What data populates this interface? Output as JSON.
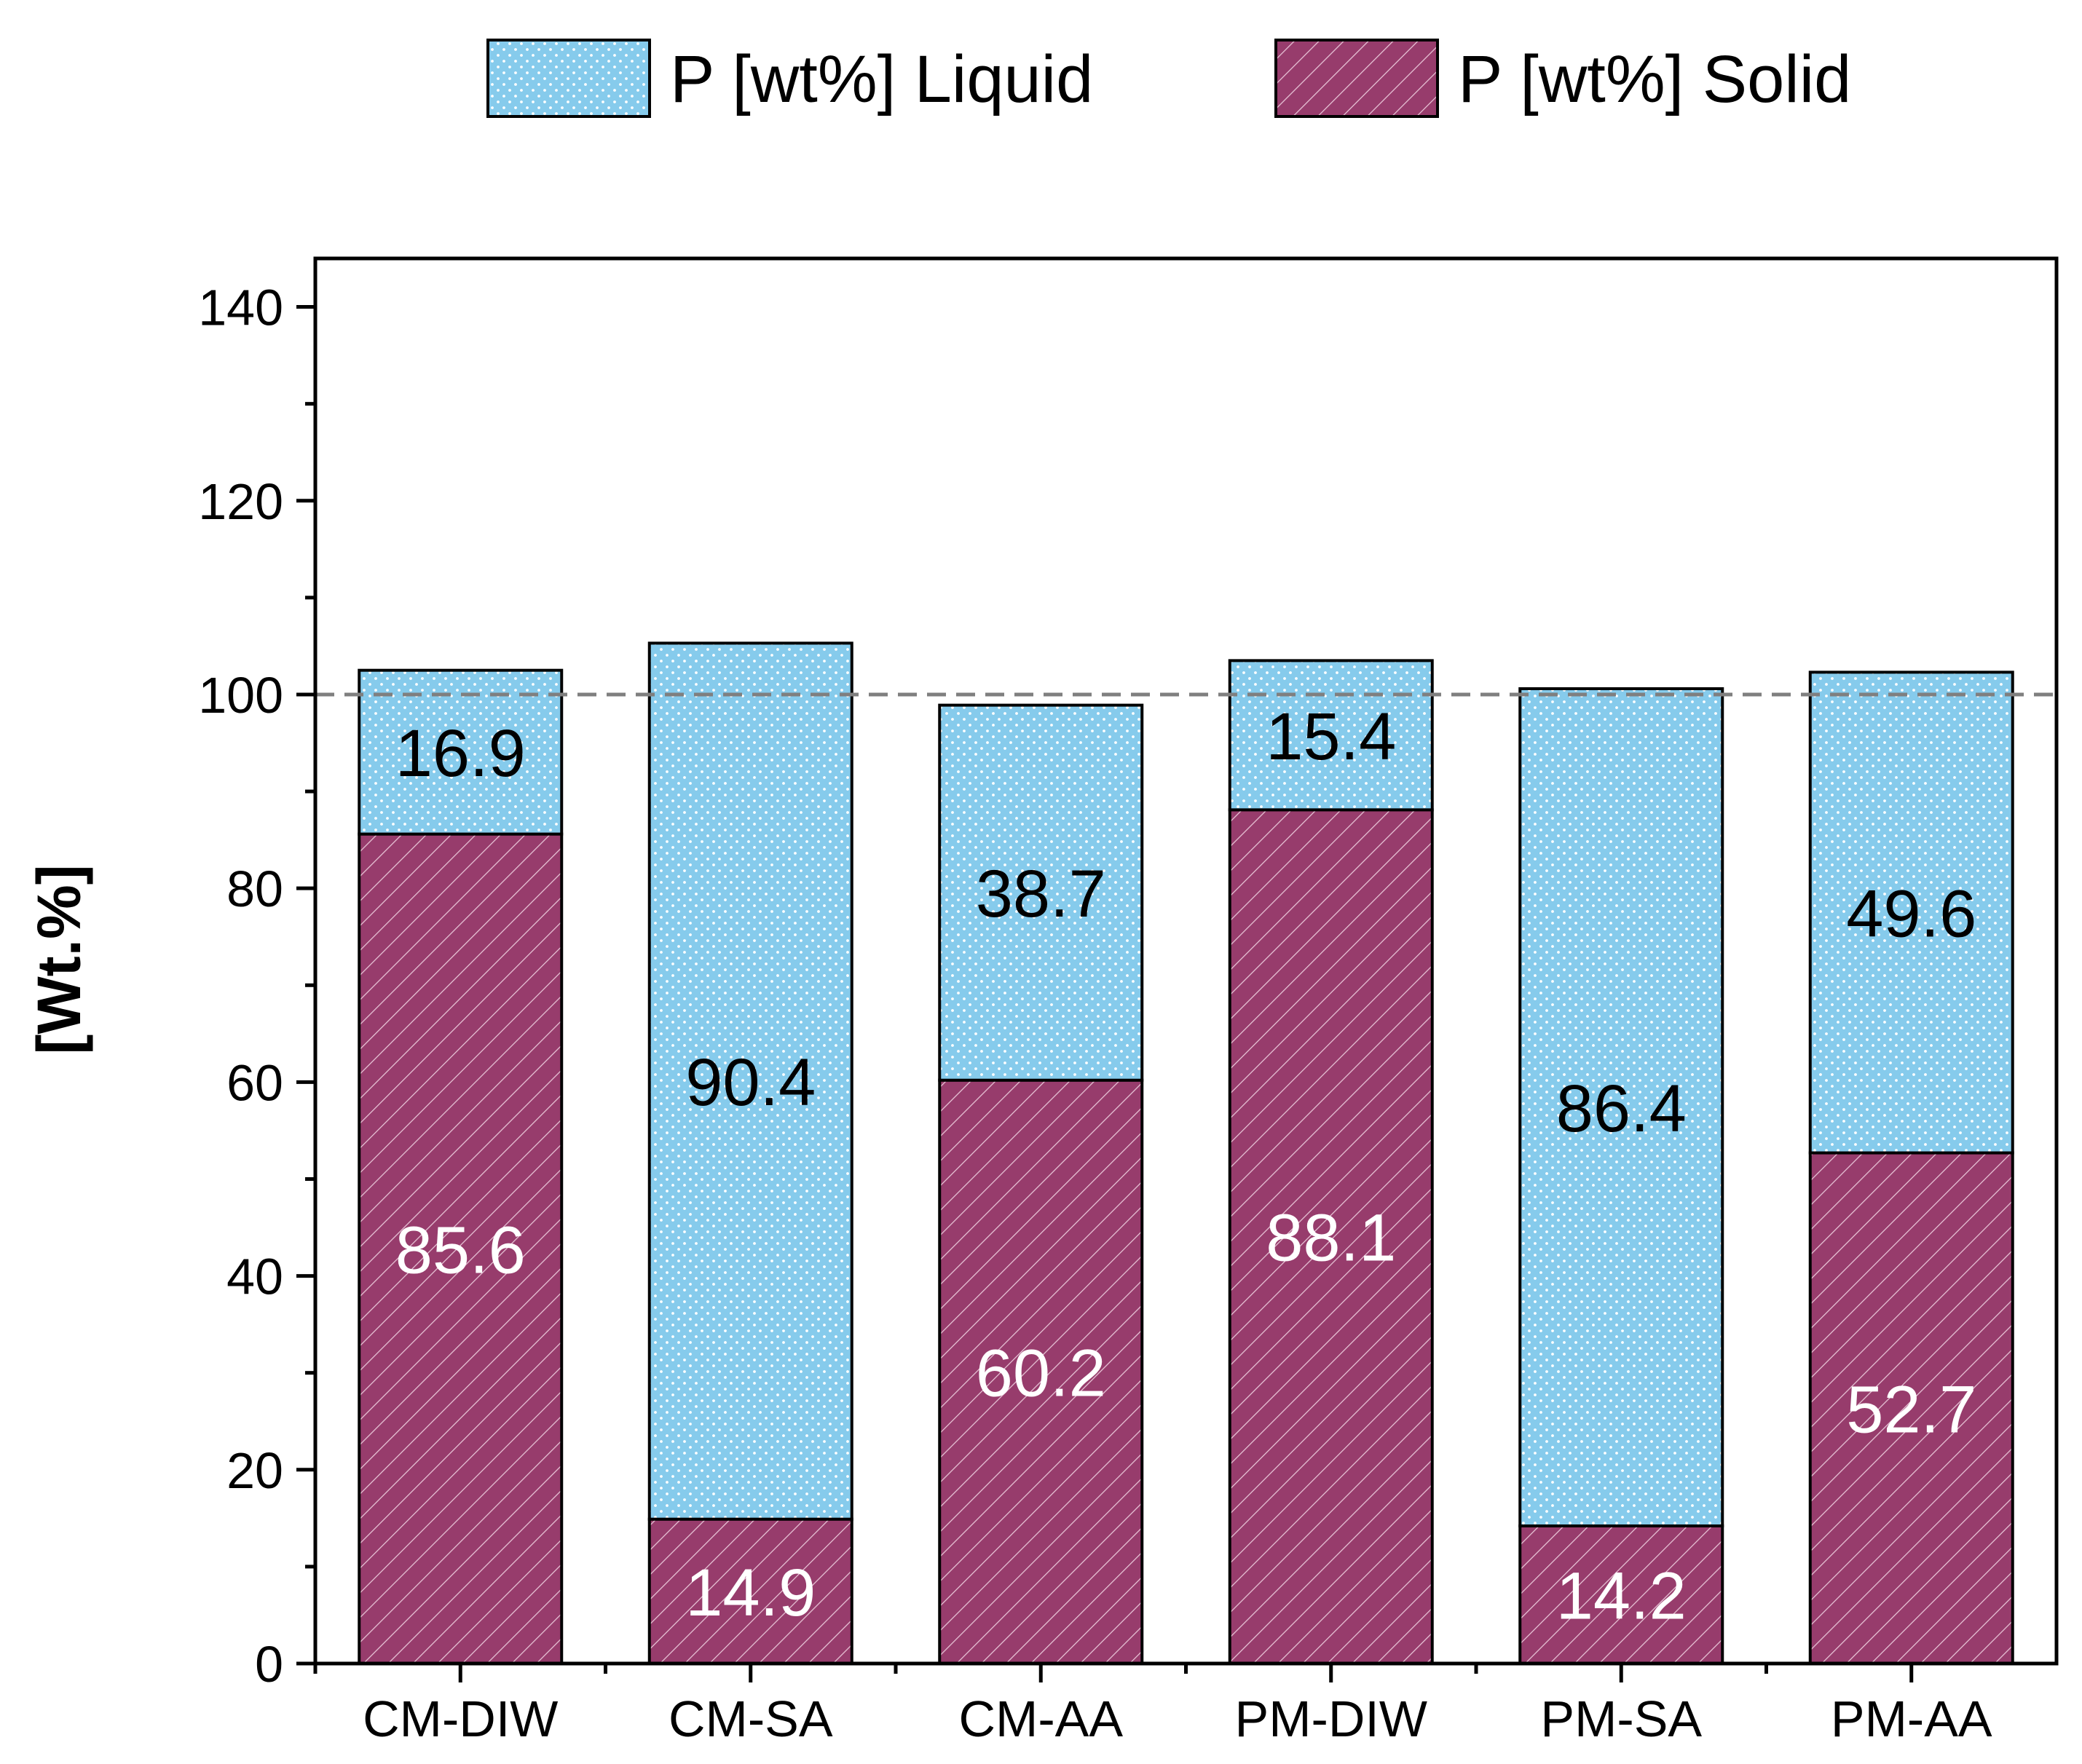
{
  "chart_data": {
    "type": "bar",
    "stacked": true,
    "title": "",
    "xlabel": "",
    "ylabel": "[Wt.%]",
    "ylim": [
      0,
      145
    ],
    "yticks": [
      0,
      20,
      40,
      60,
      80,
      100,
      120,
      140
    ],
    "ytick_labels": [
      "0",
      "20",
      "40",
      "60",
      "80",
      "100",
      "120",
      "140"
    ],
    "reference_line": {
      "y": 100,
      "style": "dashed"
    },
    "legend_position": "top",
    "categories": [
      "CM-DIW",
      "CM-SA",
      "CM-AA",
      "PM-DIW",
      "PM-SA",
      "PM-AA"
    ],
    "series": [
      {
        "name": "P [wt%] Solid",
        "values": [
          85.6,
          14.9,
          60.2,
          88.1,
          14.2,
          52.7
        ],
        "labels": [
          "85.6",
          "14.9",
          "60.2",
          "88.1",
          "14.2",
          "52.7"
        ],
        "color": "#973c6c",
        "pattern": "diagonal-hatch",
        "label_color": "#ffffff"
      },
      {
        "name": "P [wt%] Liquid",
        "values": [
          16.9,
          90.4,
          38.7,
          15.4,
          86.4,
          49.6
        ],
        "labels": [
          "16.9",
          "90.4",
          "38.7",
          "15.4",
          "86.4",
          "49.6"
        ],
        "color": "#86cbec",
        "pattern": "dots",
        "label_color": "#000000"
      }
    ]
  }
}
